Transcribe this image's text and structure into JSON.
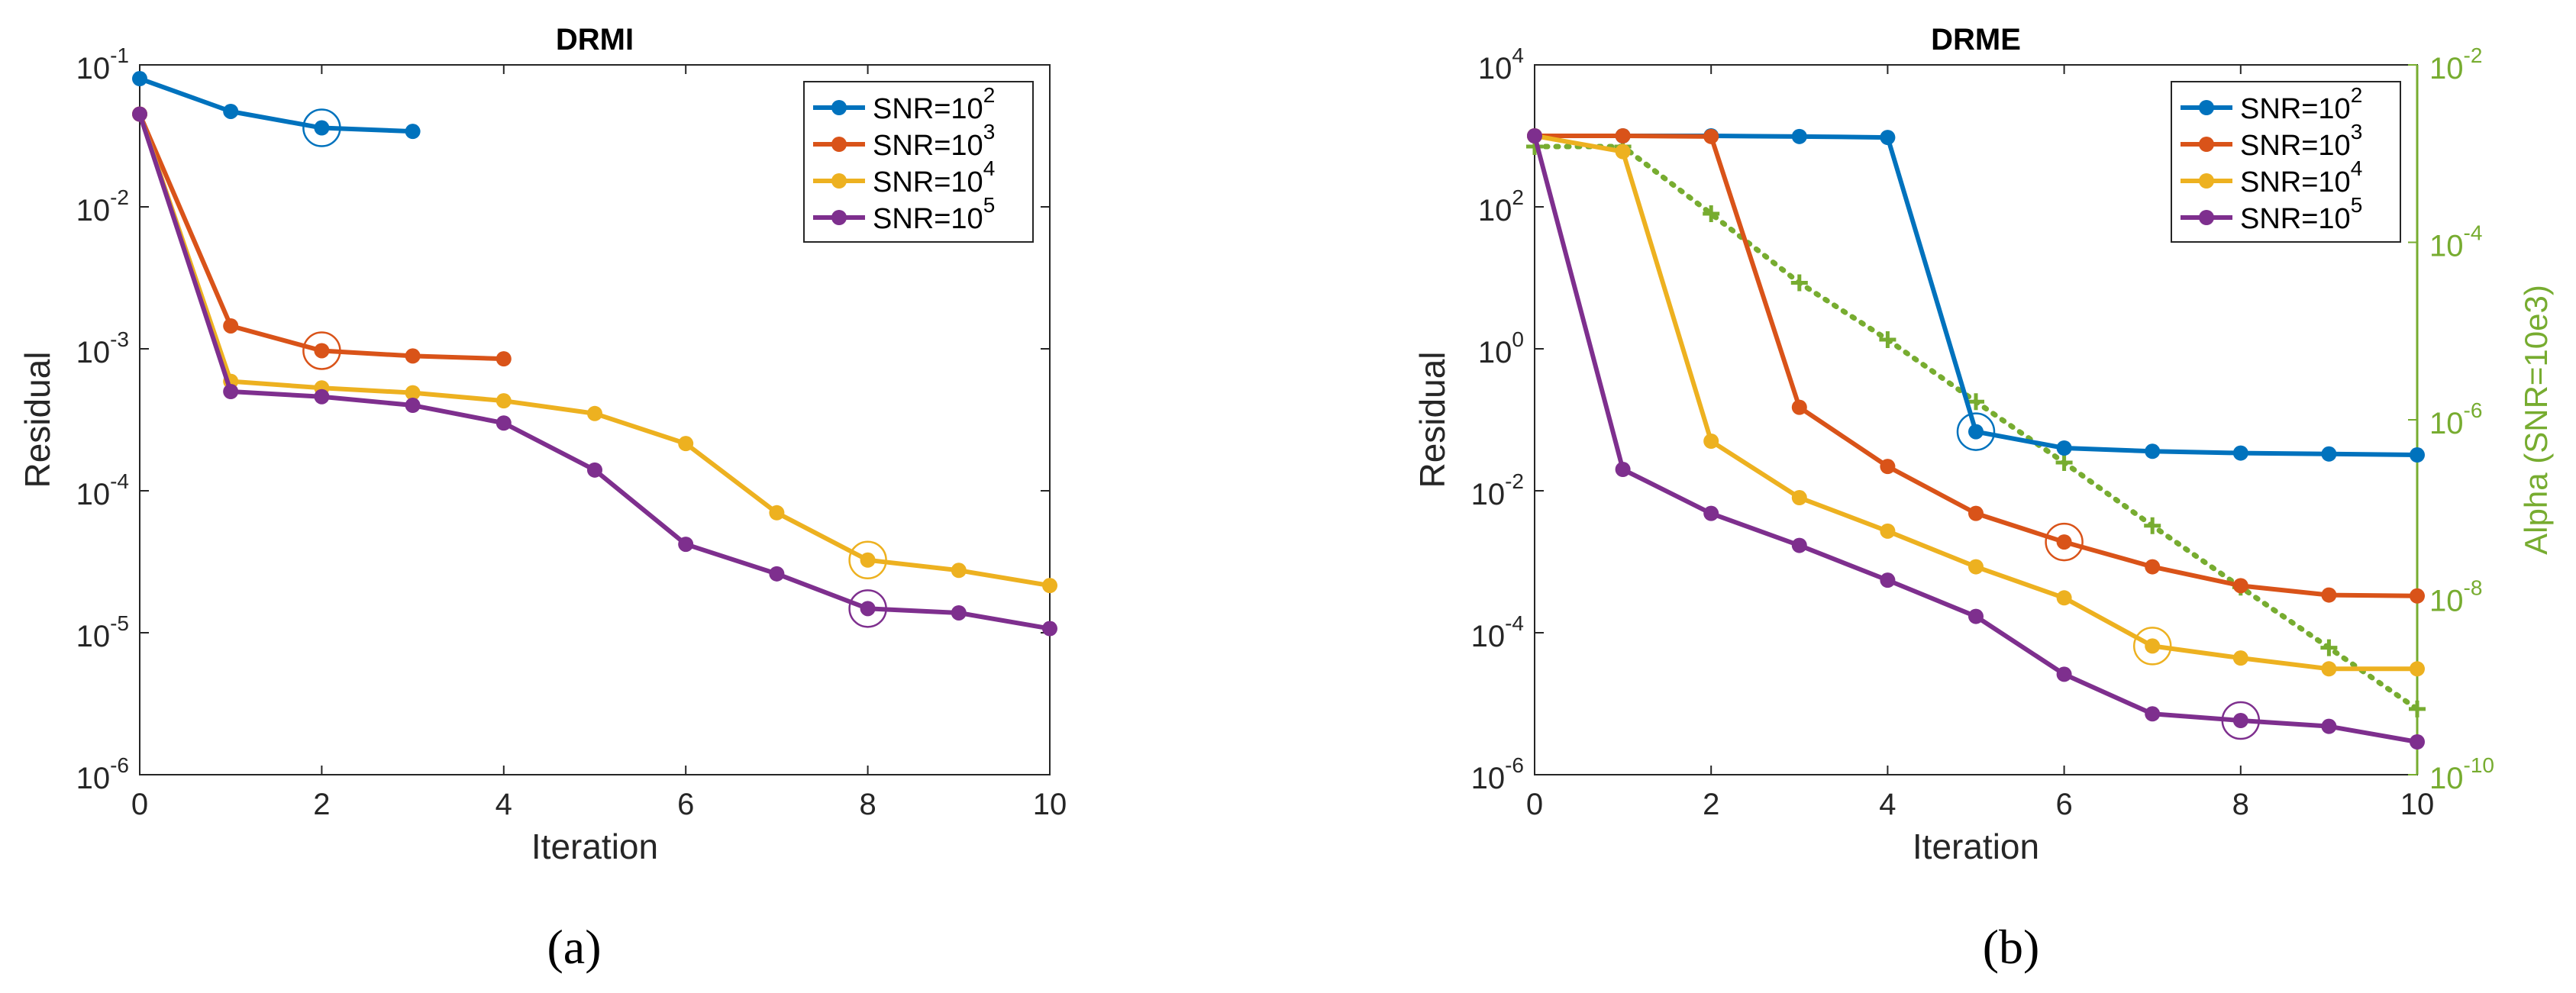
{
  "captions": [
    "(a)",
    "(b)"
  ],
  "colors": {
    "series": [
      "#0072BD",
      "#D95319",
      "#EDB120",
      "#7E2F8E"
    ],
    "alpha": "#77AC30",
    "axis": "#262626",
    "grid": "#d9d9d9"
  },
  "chart_data": [
    {
      "id": "a",
      "type": "line",
      "title": "DRMI",
      "xlabel": "Iteration",
      "ylabel": "Residual",
      "yscale": "log",
      "xlim": [
        0,
        10
      ],
      "ylim": [
        1e-06,
        0.1
      ],
      "xticks": [
        0,
        2,
        4,
        6,
        8,
        10
      ],
      "yticks": [
        {
          "value": 1e-06,
          "base": "10",
          "exp": "-6"
        },
        {
          "value": 1e-05,
          "base": "10",
          "exp": "-5"
        },
        {
          "value": 0.0001,
          "base": "10",
          "exp": "-4"
        },
        {
          "value": 0.001,
          "base": "10",
          "exp": "-3"
        },
        {
          "value": 0.01,
          "base": "10",
          "exp": "-2"
        },
        {
          "value": 0.1,
          "base": "10",
          "exp": "-1"
        }
      ],
      "legend_position": "top-right",
      "series": [
        {
          "name": "SNR=10",
          "sup": "2",
          "x": [
            0,
            1,
            2,
            3
          ],
          "values": [
            0.08,
            0.047,
            0.036,
            0.034
          ],
          "marked_x": 2
        },
        {
          "name": "SNR=10",
          "sup": "3",
          "x": [
            0,
            1,
            2,
            3,
            4
          ],
          "values": [
            0.045,
            0.00145,
            0.00097,
            0.00089,
            0.00085
          ],
          "marked_x": 2
        },
        {
          "name": "SNR=10",
          "sup": "4",
          "x": [
            0,
            1,
            2,
            3,
            4,
            5,
            6,
            7,
            8,
            9,
            10
          ],
          "values": [
            0.045,
            0.00059,
            0.00053,
            0.00049,
            0.00043,
            0.00035,
            0.000215,
            7e-05,
            3.25e-05,
            2.75e-05,
            2.15e-05
          ],
          "marked_x": 8
        },
        {
          "name": "SNR=10",
          "sup": "5",
          "x": [
            0,
            1,
            2,
            3,
            4,
            5,
            6,
            7,
            8,
            9,
            10
          ],
          "values": [
            0.045,
            0.0005,
            0.00046,
            0.0004,
            0.0003,
            0.00014,
            4.2e-05,
            2.6e-05,
            1.48e-05,
            1.38e-05,
            1.07e-05
          ],
          "marked_x": 8
        }
      ]
    },
    {
      "id": "b",
      "type": "line",
      "title": "DRME",
      "xlabel": "Iteration",
      "ylabel": "Residual",
      "y2label": "Alpha (SNR=10e3)",
      "yscale": "log",
      "xlim": [
        0,
        10
      ],
      "ylim": [
        1e-06,
        10000.0
      ],
      "y2lim": [
        1e-10,
        0.01
      ],
      "xticks": [
        0,
        2,
        4,
        6,
        8,
        10
      ],
      "yticks": [
        {
          "value": 1e-06,
          "base": "10",
          "exp": "-6"
        },
        {
          "value": 0.0001,
          "base": "10",
          "exp": "-4"
        },
        {
          "value": 0.01,
          "base": "10",
          "exp": "-2"
        },
        {
          "value": 1,
          "base": "10",
          "exp": "0"
        },
        {
          "value": 100,
          "base": "10",
          "exp": "2"
        },
        {
          "value": 10000,
          "base": "10",
          "exp": "4"
        }
      ],
      "y2ticks": [
        {
          "value": 1e-10,
          "base": "10",
          "exp": "-10"
        },
        {
          "value": 1e-08,
          "base": "10",
          "exp": "-8"
        },
        {
          "value": 1e-06,
          "base": "10",
          "exp": "-6"
        },
        {
          "value": 0.0001,
          "base": "10",
          "exp": "-4"
        },
        {
          "value": 0.01,
          "base": "10",
          "exp": "-2"
        }
      ],
      "legend_position": "top-right",
      "series": [
        {
          "name": "SNR=10",
          "sup": "2",
          "x": [
            0,
            1,
            2,
            3,
            4,
            5,
            6,
            7,
            8,
            9,
            10
          ],
          "values": [
            1000,
            1000,
            1000,
            980,
            950,
            0.068,
            0.04,
            0.036,
            0.034,
            0.033,
            0.032
          ],
          "marked_x": 5
        },
        {
          "name": "SNR=10",
          "sup": "3",
          "x": [
            0,
            1,
            2,
            3,
            4,
            5,
            6,
            7,
            8,
            9,
            10
          ],
          "values": [
            1000,
            1000,
            980,
            0.15,
            0.022,
            0.0048,
            0.0019,
            0.00085,
            0.00046,
            0.00034,
            0.00033
          ],
          "marked_x": 6
        },
        {
          "name": "SNR=10",
          "sup": "4",
          "x": [
            0,
            1,
            2,
            3,
            4,
            5,
            6,
            7,
            8,
            9,
            10
          ],
          "values": [
            1000,
            600,
            0.05,
            0.008,
            0.0027,
            0.00085,
            0.00031,
            6.5e-05,
            4.4e-05,
            3.1e-05,
            3.1e-05
          ],
          "marked_x": 7
        },
        {
          "name": "SNR=10",
          "sup": "5",
          "x": [
            0,
            1,
            2,
            3,
            4,
            5,
            6,
            7,
            8,
            9,
            10
          ],
          "values": [
            1000,
            0.02,
            0.0048,
            0.0017,
            0.00055,
            0.00017,
            2.6e-05,
            7.2e-06,
            5.8e-06,
            4.8e-06,
            2.9e-06
          ],
          "marked_x": 8
        }
      ],
      "alpha_series": {
        "name": "Alpha (SNR=10e3)",
        "axis": "right",
        "x": [
          0,
          1,
          2,
          3,
          4,
          5,
          6,
          7,
          8,
          9,
          10
        ],
        "values": [
          0.0012,
          0.0012,
          0.00021,
          3.5e-05,
          8e-06,
          1.6e-06,
          3.3e-07,
          6.4e-08,
          1.3e-08,
          2.7e-09,
          5.5e-10
        ]
      }
    }
  ]
}
